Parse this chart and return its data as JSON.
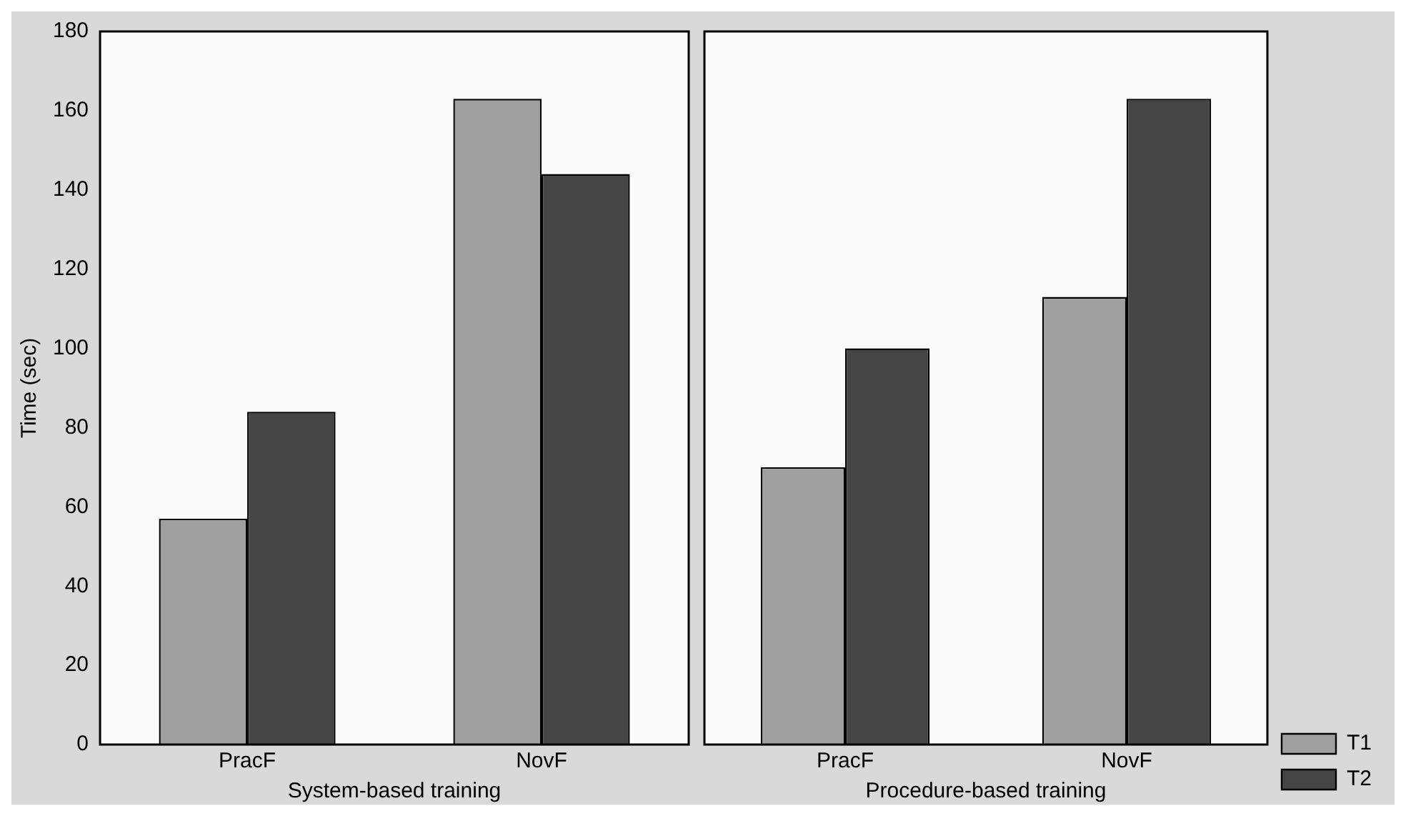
{
  "chart_data": [
    {
      "type": "bar",
      "xlabel": "System-based training",
      "ylabel": "Time (sec)",
      "categories": [
        "PracF",
        "NovF"
      ],
      "series": [
        {
          "color": "#a0a0a0",
          "values": [
            57,
            163
          ]
        },
        {
          "color": "#454545",
          "values": [
            84,
            144
          ]
        }
      ],
      "ylim": [
        0,
        180
      ],
      "yticks": [
        0,
        20,
        40,
        60,
        80,
        100,
        120,
        140,
        160,
        180
      ],
      "grid": false,
      "legend": false
    },
    {
      "type": "bar",
      "xlabel": "Procedure-based training",
      "categories": [
        "PracF",
        "NovF"
      ],
      "series": [
        {
          "name": "T1",
          "color": "#a0a0a0",
          "values": [
            70,
            113
          ]
        },
        {
          "name": "T2",
          "color": "#454545",
          "values": [
            100,
            163
          ]
        }
      ],
      "ylim": [
        0,
        180
      ],
      "yticks": [
        0,
        20,
        40,
        60,
        80,
        100,
        120,
        140,
        160,
        180
      ],
      "grid": false,
      "legend": "bottom right",
      "tick_labels": "x"
    }
  ]
}
